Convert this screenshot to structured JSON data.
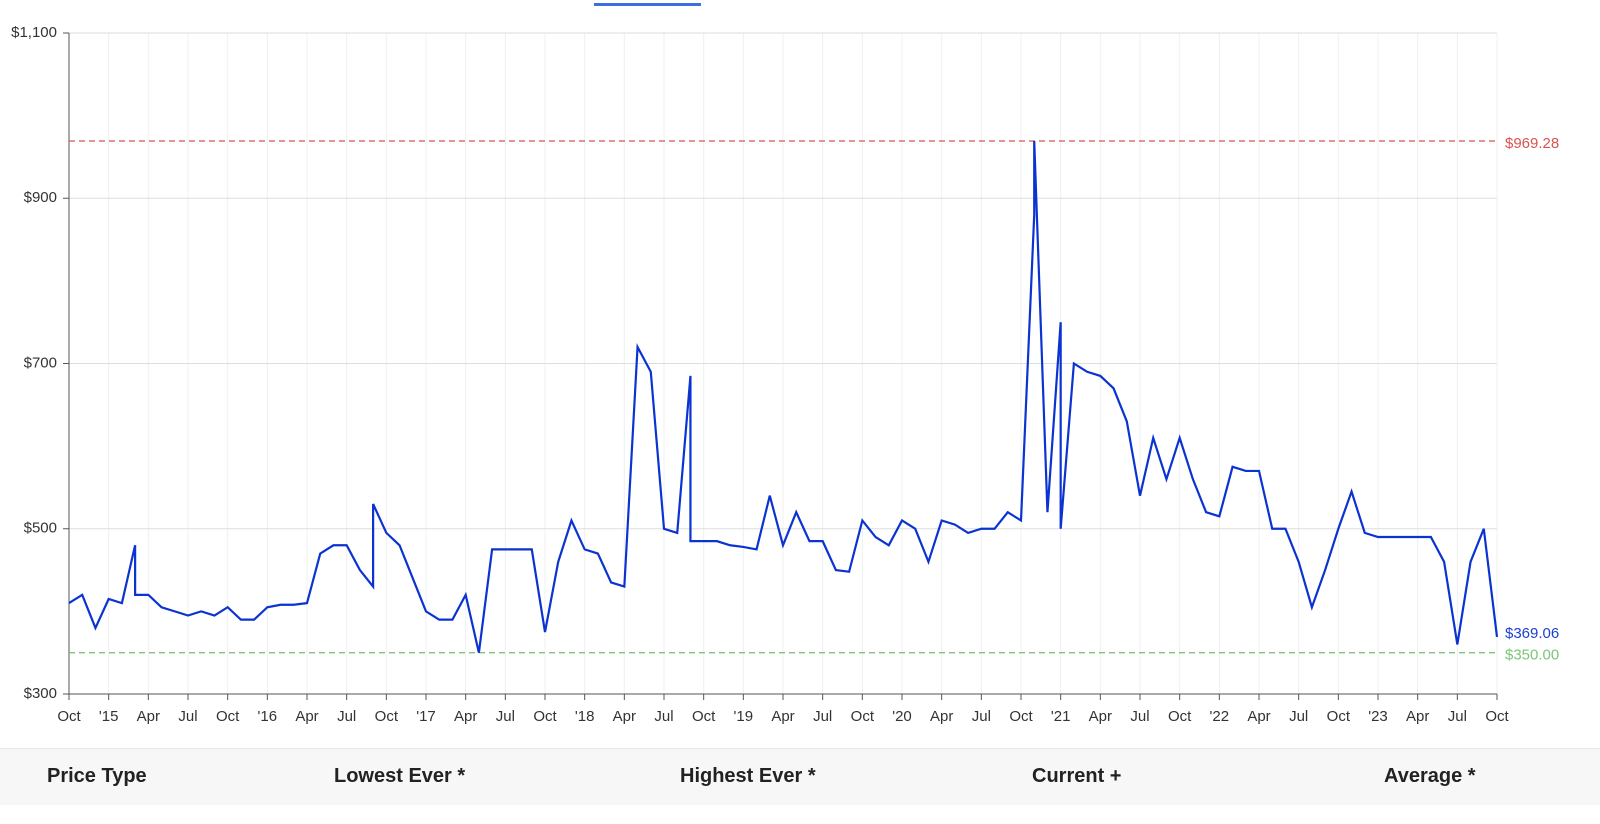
{
  "chart_data": {
    "type": "line",
    "x": [
      "2014-10",
      "2014-11",
      "2014-12",
      "2015-01",
      "2015-02",
      "2015-03",
      "2015-03",
      "2015-04",
      "2015-05",
      "2015-06",
      "2015-07",
      "2015-08",
      "2015-09",
      "2015-10",
      "2015-11",
      "2015-12",
      "2016-01",
      "2016-02",
      "2016-03",
      "2016-04",
      "2016-05",
      "2016-06",
      "2016-07",
      "2016-08",
      "2016-09",
      "2016-09",
      "2016-10",
      "2016-11",
      "2016-12",
      "2017-01",
      "2017-02",
      "2017-03",
      "2017-04",
      "2017-05",
      "2017-06",
      "2017-07",
      "2017-08",
      "2017-09",
      "2017-10",
      "2017-11",
      "2017-12",
      "2018-01",
      "2018-02",
      "2018-03",
      "2018-04",
      "2018-05",
      "2018-06",
      "2018-07",
      "2018-08",
      "2018-09",
      "2018-09",
      "2018-10",
      "2018-11",
      "2018-12",
      "2019-01",
      "2019-02",
      "2019-03",
      "2019-04",
      "2019-05",
      "2019-06",
      "2019-07",
      "2019-08",
      "2019-09",
      "2019-10",
      "2019-11",
      "2019-12",
      "2020-01",
      "2020-02",
      "2020-03",
      "2020-04",
      "2020-05",
      "2020-06",
      "2020-07",
      "2020-08",
      "2020-09",
      "2020-10",
      "2020-11",
      "2020-11",
      "2020-12",
      "2021-01",
      "2021-01",
      "2021-02",
      "2021-03",
      "2021-04",
      "2021-05",
      "2021-06",
      "2021-07",
      "2021-08",
      "2021-09",
      "2021-10",
      "2021-11",
      "2021-12",
      "2022-01",
      "2022-02",
      "2022-03",
      "2022-04",
      "2022-05",
      "2022-06",
      "2022-07",
      "2022-08",
      "2022-09",
      "2022-10",
      "2022-11",
      "2022-12",
      "2023-01",
      "2023-02",
      "2023-03",
      "2023-04",
      "2023-05",
      "2023-06",
      "2023-07",
      "2023-08",
      "2023-09",
      "2023-10"
    ],
    "series": [
      {
        "color": "#0b33d1",
        "values": [
          410,
          420,
          380,
          415,
          410,
          480,
          420,
          420,
          405,
          400,
          395,
          400,
          395,
          405,
          390,
          390,
          405,
          408,
          408,
          410,
          470,
          480,
          480,
          450,
          430,
          530,
          495,
          480,
          440,
          400,
          390,
          390,
          420,
          350,
          475,
          475,
          475,
          475,
          375,
          460,
          510,
          475,
          470,
          435,
          430,
          720,
          690,
          500,
          495,
          685,
          485,
          485,
          485,
          480,
          478,
          475,
          540,
          480,
          520,
          485,
          485,
          450,
          448,
          510,
          490,
          480,
          510,
          500,
          460,
          510,
          505,
          495,
          500,
          500,
          520,
          510,
          880,
          969.28,
          520,
          750,
          500,
          700,
          690,
          685,
          670,
          630,
          540,
          610,
          560,
          610,
          560,
          520,
          515,
          575,
          570,
          570,
          500,
          500,
          460,
          405,
          450,
          500,
          545,
          495,
          490,
          490,
          490,
          490,
          490,
          460,
          360,
          460,
          500,
          369.06
        ]
      }
    ],
    "xlim": [
      "2014-10",
      "2023-10"
    ],
    "xticks": [
      {
        "value": "2014-10",
        "label": "Oct"
      },
      {
        "value": "2015-01",
        "label": "'15"
      },
      {
        "value": "2015-04",
        "label": "Apr"
      },
      {
        "value": "2015-07",
        "label": "Jul"
      },
      {
        "value": "2015-10",
        "label": "Oct"
      },
      {
        "value": "2016-01",
        "label": "'16"
      },
      {
        "value": "2016-04",
        "label": "Apr"
      },
      {
        "value": "2016-07",
        "label": "Jul"
      },
      {
        "value": "2016-10",
        "label": "Oct"
      },
      {
        "value": "2017-01",
        "label": "'17"
      },
      {
        "value": "2017-04",
        "label": "Apr"
      },
      {
        "value": "2017-07",
        "label": "Jul"
      },
      {
        "value": "2017-10",
        "label": "Oct"
      },
      {
        "value": "2018-01",
        "label": "'18"
      },
      {
        "value": "2018-04",
        "label": "Apr"
      },
      {
        "value": "2018-07",
        "label": "Jul"
      },
      {
        "value": "2018-10",
        "label": "Oct"
      },
      {
        "value": "2019-01",
        "label": "'19"
      },
      {
        "value": "2019-04",
        "label": "Apr"
      },
      {
        "value": "2019-07",
        "label": "Jul"
      },
      {
        "value": "2019-10",
        "label": "Oct"
      },
      {
        "value": "2020-01",
        "label": "'20"
      },
      {
        "value": "2020-04",
        "label": "Apr"
      },
      {
        "value": "2020-07",
        "label": "Jul"
      },
      {
        "value": "2020-10",
        "label": "Oct"
      },
      {
        "value": "2021-01",
        "label": "'21"
      },
      {
        "value": "2021-04",
        "label": "Apr"
      },
      {
        "value": "2021-07",
        "label": "Jul"
      },
      {
        "value": "2021-10",
        "label": "Oct"
      },
      {
        "value": "2022-01",
        "label": "'22"
      },
      {
        "value": "2022-04",
        "label": "Apr"
      },
      {
        "value": "2022-07",
        "label": "Jul"
      },
      {
        "value": "2022-10",
        "label": "Oct"
      },
      {
        "value": "2023-01",
        "label": "'23"
      },
      {
        "value": "2023-04",
        "label": "Apr"
      },
      {
        "value": "2023-07",
        "label": "Jul"
      },
      {
        "value": "2023-10",
        "label": "Oct"
      }
    ],
    "ylim": [
      300,
      1100
    ],
    "yticks": [
      {
        "value": 300,
        "label": "$300"
      },
      {
        "value": 500,
        "label": "$500"
      },
      {
        "value": 700,
        "label": "$700"
      },
      {
        "value": 900,
        "label": "$900"
      },
      {
        "value": 1100,
        "label": "$1,100"
      }
    ],
    "grid": true,
    "reference_lines": [
      {
        "value": 969.28,
        "label": "$969.28",
        "color": "#d9534f"
      },
      {
        "value": 350,
        "label": "$350.00",
        "color": "#7cc576"
      }
    ],
    "current": {
      "value": 369.06,
      "label": "$369.06",
      "color": "#1a3fd6"
    }
  },
  "table": {
    "headers": [
      "Price Type",
      "Lowest Ever *",
      "Highest Ever *",
      "Current +",
      "Average *"
    ]
  }
}
